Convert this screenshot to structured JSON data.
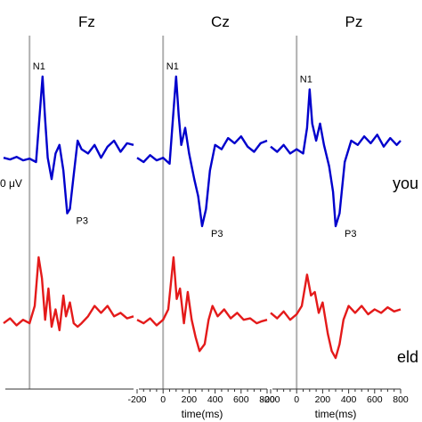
{
  "chart_data": {
    "type": "line",
    "panels": [
      {
        "title": "Fz",
        "labels": {
          "N1": "N1",
          "P3": "P3"
        },
        "extra_label": "0 μV",
        "show_xaxis_ticks": false,
        "show_xaxis_label": false
      },
      {
        "title": "Cz",
        "labels": {
          "N1": "N1",
          "P3": "P3"
        },
        "extra_label": "",
        "show_xaxis_ticks": true,
        "show_xaxis_label": true
      },
      {
        "title": "Pz",
        "labels": {
          "N1": "N1",
          "P3": "P3"
        },
        "extra_label": "",
        "show_xaxis_ticks": true,
        "show_xaxis_label": true
      }
    ],
    "xlabel": "time(ms)",
    "x_ticks": [
      -200,
      0,
      200,
      400,
      600,
      800
    ],
    "x_tick_labels": [
      "-200",
      "0",
      "200",
      "400",
      "600",
      "800"
    ],
    "xlim": [
      -200,
      800
    ],
    "stimulus_onset": 0,
    "ylim": [
      -1,
      1
    ],
    "groups": [
      "you",
      "eld"
    ],
    "series": [
      {
        "group": "you",
        "color": "#0000cc",
        "points": [
          [
            [
              -200,
              0.05
            ],
            [
              -150,
              0.03
            ],
            [
              -100,
              0.06
            ],
            [
              -50,
              0.02
            ],
            [
              0,
              0.04
            ],
            [
              50,
              0.0
            ],
            [
              80,
              0.6
            ],
            [
              100,
              1.0
            ],
            [
              120,
              0.5
            ],
            [
              140,
              0.05
            ],
            [
              170,
              -0.2
            ],
            [
              200,
              0.1
            ],
            [
              230,
              0.2
            ],
            [
              260,
              -0.1
            ],
            [
              290,
              -0.6
            ],
            [
              310,
              -0.55
            ],
            [
              340,
              -0.15
            ],
            [
              370,
              0.25
            ],
            [
              400,
              0.15
            ],
            [
              450,
              0.1
            ],
            [
              500,
              0.2
            ],
            [
              550,
              0.05
            ],
            [
              600,
              0.18
            ],
            [
              650,
              0.25
            ],
            [
              700,
              0.12
            ],
            [
              750,
              0.22
            ],
            [
              800,
              0.2
            ]
          ],
          [
            [
              -200,
              0.05
            ],
            [
              -150,
              0.0
            ],
            [
              -100,
              0.08
            ],
            [
              -50,
              0.02
            ],
            [
              0,
              0.05
            ],
            [
              50,
              -0.02
            ],
            [
              80,
              0.6
            ],
            [
              100,
              1.0
            ],
            [
              120,
              0.55
            ],
            [
              140,
              0.2
            ],
            [
              170,
              0.4
            ],
            [
              200,
              0.1
            ],
            [
              240,
              -0.2
            ],
            [
              270,
              -0.4
            ],
            [
              300,
              -0.75
            ],
            [
              330,
              -0.55
            ],
            [
              360,
              -0.1
            ],
            [
              400,
              0.2
            ],
            [
              450,
              0.15
            ],
            [
              500,
              0.28
            ],
            [
              550,
              0.22
            ],
            [
              600,
              0.3
            ],
            [
              650,
              0.18
            ],
            [
              700,
              0.12
            ],
            [
              750,
              0.22
            ],
            [
              800,
              0.25
            ]
          ],
          [
            [
              -200,
              0.18
            ],
            [
              -150,
              0.12
            ],
            [
              -100,
              0.2
            ],
            [
              -50,
              0.1
            ],
            [
              0,
              0.15
            ],
            [
              50,
              0.1
            ],
            [
              80,
              0.4
            ],
            [
              100,
              0.85
            ],
            [
              120,
              0.45
            ],
            [
              150,
              0.25
            ],
            [
              180,
              0.45
            ],
            [
              210,
              0.2
            ],
            [
              250,
              -0.05
            ],
            [
              280,
              -0.35
            ],
            [
              300,
              -0.75
            ],
            [
              330,
              -0.6
            ],
            [
              370,
              0.0
            ],
            [
              420,
              0.25
            ],
            [
              470,
              0.2
            ],
            [
              520,
              0.3
            ],
            [
              570,
              0.22
            ],
            [
              620,
              0.32
            ],
            [
              670,
              0.18
            ],
            [
              720,
              0.28
            ],
            [
              770,
              0.2
            ],
            [
              800,
              0.25
            ]
          ]
        ]
      },
      {
        "group": "eld",
        "color": "#e41a1a",
        "points": [
          [
            [
              -200,
              0.05
            ],
            [
              -150,
              0.12
            ],
            [
              -100,
              0.02
            ],
            [
              -50,
              0.1
            ],
            [
              0,
              0.05
            ],
            [
              40,
              0.3
            ],
            [
              70,
              1.0
            ],
            [
              95,
              0.7
            ],
            [
              120,
              0.1
            ],
            [
              145,
              0.55
            ],
            [
              170,
              0.0
            ],
            [
              200,
              0.25
            ],
            [
              230,
              -0.05
            ],
            [
              260,
              0.45
            ],
            [
              280,
              0.15
            ],
            [
              310,
              0.35
            ],
            [
              340,
              0.05
            ],
            [
              370,
              0.0
            ],
            [
              400,
              0.05
            ],
            [
              450,
              0.15
            ],
            [
              500,
              0.3
            ],
            [
              550,
              0.2
            ],
            [
              600,
              0.3
            ],
            [
              650,
              0.15
            ],
            [
              700,
              0.2
            ],
            [
              750,
              0.12
            ],
            [
              800,
              0.15
            ]
          ],
          [
            [
              -200,
              0.1
            ],
            [
              -150,
              0.05
            ],
            [
              -100,
              0.12
            ],
            [
              -50,
              0.02
            ],
            [
              0,
              0.1
            ],
            [
              40,
              0.25
            ],
            [
              80,
              1.0
            ],
            [
              105,
              0.4
            ],
            [
              130,
              0.55
            ],
            [
              160,
              0.05
            ],
            [
              190,
              0.5
            ],
            [
              220,
              0.1
            ],
            [
              250,
              -0.15
            ],
            [
              280,
              -0.35
            ],
            [
              320,
              -0.25
            ],
            [
              350,
              0.1
            ],
            [
              380,
              0.3
            ],
            [
              420,
              0.15
            ],
            [
              470,
              0.25
            ],
            [
              520,
              0.12
            ],
            [
              570,
              0.2
            ],
            [
              620,
              0.1
            ],
            [
              670,
              0.12
            ],
            [
              720,
              0.05
            ],
            [
              760,
              0.08
            ],
            [
              800,
              0.1
            ]
          ],
          [
            [
              -200,
              0.2
            ],
            [
              -150,
              0.12
            ],
            [
              -100,
              0.22
            ],
            [
              -50,
              0.1
            ],
            [
              0,
              0.18
            ],
            [
              40,
              0.3
            ],
            [
              80,
              0.75
            ],
            [
              110,
              0.45
            ],
            [
              140,
              0.5
            ],
            [
              170,
              0.2
            ],
            [
              200,
              0.35
            ],
            [
              240,
              -0.1
            ],
            [
              270,
              -0.35
            ],
            [
              300,
              -0.45
            ],
            [
              330,
              -0.25
            ],
            [
              360,
              0.1
            ],
            [
              400,
              0.3
            ],
            [
              450,
              0.2
            ],
            [
              500,
              0.3
            ],
            [
              550,
              0.18
            ],
            [
              600,
              0.25
            ],
            [
              650,
              0.2
            ],
            [
              700,
              0.28
            ],
            [
              750,
              0.22
            ],
            [
              800,
              0.25
            ]
          ]
        ]
      }
    ]
  }
}
